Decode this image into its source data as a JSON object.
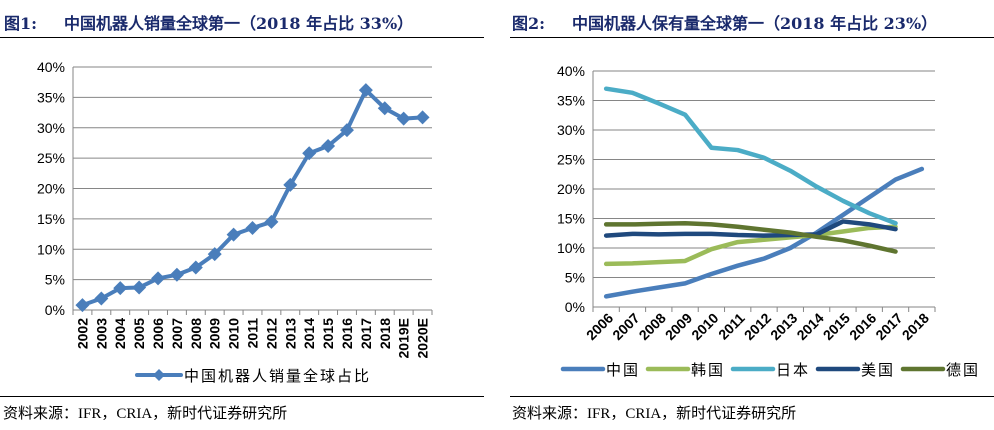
{
  "figures": [
    {
      "label": "图1:",
      "title": "中国机器人销量全球第一（2018 年占比 33%）",
      "source": "资料来源：IFR，CRIA，新时代证券研究所"
    },
    {
      "label": "图2:",
      "title": "中国机器人保有量全球第一（2018 年占比 23%）",
      "source": "资料来源：IFR，CRIA，新时代证券研究所"
    }
  ],
  "chart_data": [
    {
      "type": "line",
      "title": "中国机器人销量全球第一（2018 年占比 33%）",
      "xlabel": "",
      "ylabel": "",
      "categories": [
        "2002",
        "2003",
        "2004",
        "2005",
        "2006",
        "2007",
        "2008",
        "2009",
        "2010",
        "2011",
        "2012",
        "2013",
        "2014",
        "2015",
        "2016",
        "2017",
        "2018",
        "2019E",
        "2020E"
      ],
      "series": [
        {
          "name": "中国机器人销量全球占比",
          "color": "#4a7ebb",
          "marker": "diamond",
          "values": [
            0.8,
            1.9,
            3.6,
            3.7,
            5.2,
            5.8,
            7.0,
            9.2,
            12.4,
            13.5,
            14.5,
            20.6,
            25.8,
            27.0,
            29.6,
            36.2,
            33.2,
            31.5,
            31.7
          ]
        }
      ],
      "ylim": [
        0,
        40
      ],
      "yticks": [
        "0%",
        "5%",
        "10%",
        "15%",
        "20%",
        "25%",
        "30%",
        "35%",
        "40%"
      ],
      "ytick_values": [
        0,
        5,
        10,
        15,
        20,
        25,
        30,
        35,
        40
      ],
      "grid": true,
      "legend": "bottom",
      "x_label_rotation": "vertical"
    },
    {
      "type": "line",
      "title": "中国机器人保有量全球第一（2018 年占比 23%）",
      "xlabel": "",
      "ylabel": "",
      "categories": [
        "2006",
        "2007",
        "2008",
        "2009",
        "2010",
        "2011",
        "2012",
        "2013",
        "2014",
        "2015",
        "2016",
        "2017",
        "2018"
      ],
      "series": [
        {
          "name": "中国",
          "color": "#4a7ebb",
          "values": [
            1.8,
            2.6,
            3.3,
            4.0,
            5.6,
            7.0,
            8.2,
            10.0,
            12.6,
            15.6,
            18.6,
            21.6,
            23.4
          ]
        },
        {
          "name": "韩国",
          "color": "#9bbb59",
          "values": [
            7.3,
            7.4,
            7.6,
            7.8,
            9.8,
            11.0,
            11.4,
            11.8,
            12.2,
            12.8,
            13.4,
            13.6,
            null
          ]
        },
        {
          "name": "日本",
          "color": "#4bacc6",
          "values": [
            37.0,
            36.3,
            34.5,
            32.6,
            27.0,
            26.6,
            25.3,
            23.1,
            20.4,
            18.0,
            15.9,
            14.2,
            null
          ]
        },
        {
          "name": "美国",
          "color": "#1f497d",
          "values": [
            12.1,
            12.4,
            12.3,
            12.4,
            12.4,
            12.2,
            12.1,
            12.2,
            12.3,
            14.5,
            14.0,
            13.2,
            null
          ]
        },
        {
          "name": "德国",
          "color": "#5f7530",
          "values": [
            14.0,
            14.0,
            14.1,
            14.2,
            14.0,
            13.6,
            13.1,
            12.6,
            11.9,
            11.3,
            10.4,
            9.4,
            null
          ]
        }
      ],
      "ylim": [
        0,
        40
      ],
      "yticks": [
        "0%",
        "5%",
        "10%",
        "15%",
        "20%",
        "25%",
        "30%",
        "35%",
        "40%"
      ],
      "ytick_values": [
        0,
        5,
        10,
        15,
        20,
        25,
        30,
        35,
        40
      ],
      "grid": true,
      "legend": "bottom",
      "x_label_rotation": "diagonal"
    }
  ]
}
